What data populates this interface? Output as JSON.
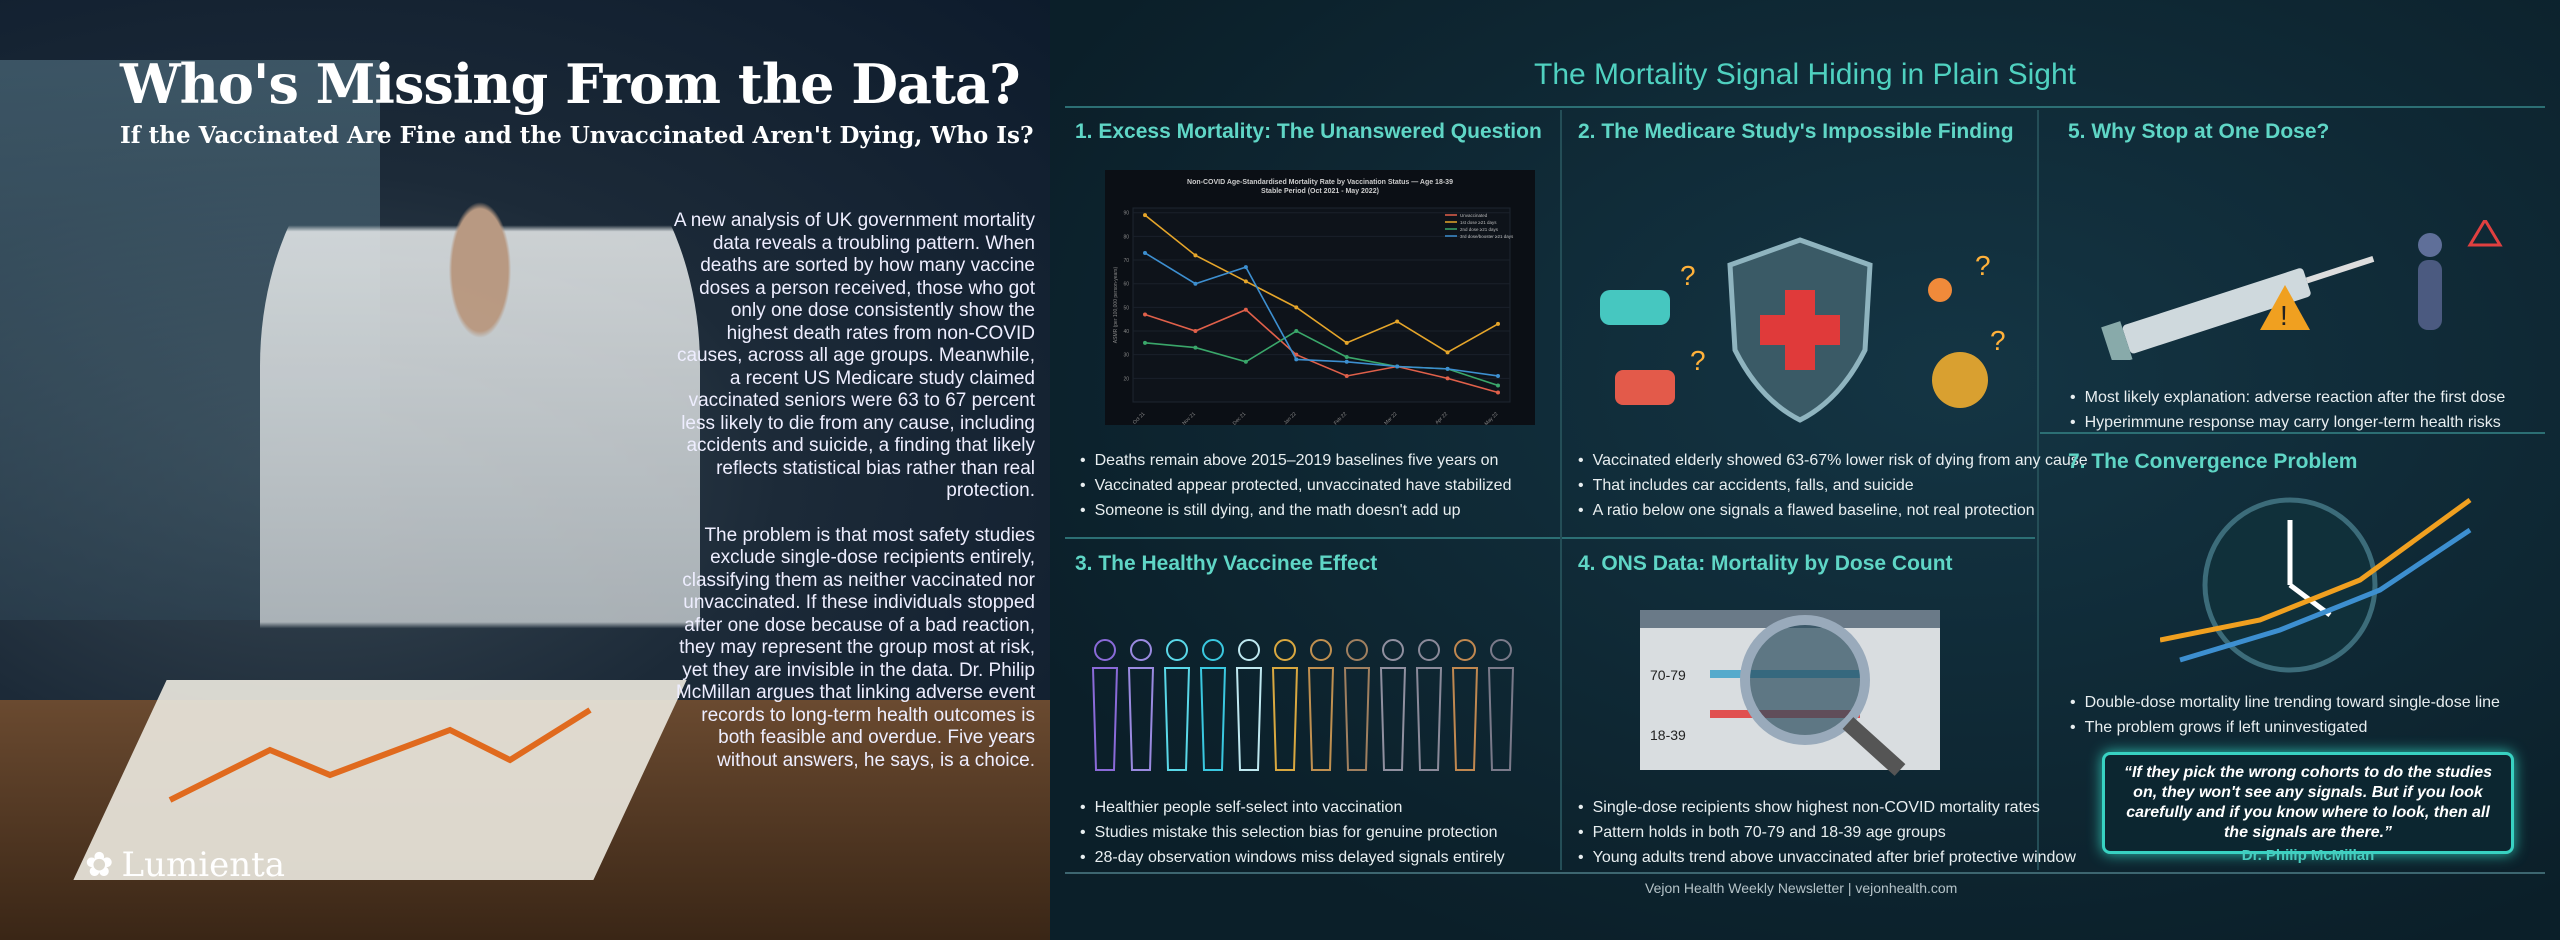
{
  "left": {
    "title": "Who's Missing From the Data?",
    "subtitle": "If the Vaccinated Are Fine and the Unvaccinated Aren't Dying, Who Is?",
    "paragraphs": [
      "A new analysis of UK government mortality data reveals a troubling pattern. When deaths are sorted by how many vaccine doses a person received, those who got only one dose consistently show the highest death rates from non-COVID causes, across all age groups. Meanwhile, a recent US Medicare study claimed vaccinated seniors were 63 to 67 percent less likely to die from any cause, including accidents and suicide, a finding that likely reflects statistical bias rather than real protection.",
      "The problem is that most safety studies exclude single-dose recipients entirely, classifying them as neither vaccinated nor unvaccinated. If these individuals stopped after one dose because of a bad reaction, they may represent the group most at risk, yet they are invisible in the data. Dr. Philip McMillan argues that linking adverse event records to long-term health outcomes is both feasible and overdue. Five years without answers, he says, is a choice."
    ],
    "logo": "Lumienta"
  },
  "main_title": "The Mortality Signal Hiding in Plain Sight",
  "sections": [
    {
      "title": "1. Excess Mortality: The Unanswered Question",
      "bullets": [
        "Deaths remain above 2015–2019 baselines five years on",
        "Vaccinated appear protected, unvaccinated have stabilized",
        "Someone is still dying, and the math doesn't add up"
      ]
    },
    {
      "title": "2. The Medicare Study's Impossible Finding",
      "bullets": [
        "Vaccinated elderly showed 63-67% lower risk of dying from any cause",
        "That includes car accidents, falls, and suicide",
        "A ratio below one signals a flawed baseline, not real protection"
      ]
    },
    {
      "title": "3. The Healthy Vaccinee Effect",
      "bullets": [
        "Healthier people self-select into vaccination",
        "Studies mistake this selection bias for genuine protection",
        "28-day observation windows miss delayed signals entirely"
      ]
    },
    {
      "title": "4. ONS Data: Mortality by Dose Count",
      "bullets": [
        "Single-dose recipients show highest non-COVID mortality rates",
        "Pattern holds in both 70-79 and 18-39 age groups",
        "Young adults trend above unvaccinated after brief protective window"
      ],
      "doc_labels": [
        "70-79",
        "18-39"
      ]
    },
    {
      "title": "5. Why Stop at One Dose?",
      "bullets": [
        "Most likely explanation: adverse reaction after the first dose",
        "Hyperimmune response may carry longer-term health risks"
      ]
    },
    {
      "title": "7. The Convergence Problem",
      "bullets": [
        "Double-dose mortality line trending toward single-dose line",
        "The problem grows if left uninvestigated"
      ]
    }
  ],
  "quote": {
    "text": "“If they pick the wrong cohorts to do the studies on, they won't see any signals. But if you look carefully and if you know where to look, then all the signals are there.”",
    "author": "Dr. Philip McMillan"
  },
  "footer": "Vejon Health Weekly Newsletter | vejonhealth.com",
  "chart_data": {
    "type": "line",
    "title": "Non-COVID Age-Standardised Mortality Rate by Vaccination Status — Age 18-39",
    "subtitle": "Stable Period (Oct 2021 - May 2022)",
    "ylabel": "ASMR (per 100,000 person-years)",
    "x": [
      "Oct 21",
      "Nov 21",
      "Dec 21",
      "Jan 22",
      "Feb 22",
      "Mar 22",
      "Apr 22",
      "May 22"
    ],
    "ylim": [
      10,
      92
    ],
    "yticks": [
      20,
      30,
      40,
      50,
      60,
      70,
      80,
      90
    ],
    "legend": "top-right",
    "series": [
      {
        "name": "Unvaccinated",
        "color": "#e0604a",
        "values": [
          47,
          40,
          49,
          30,
          21,
          25,
          20,
          14
        ]
      },
      {
        "name": "1st dose ≥21 days",
        "color": "#e5a52a",
        "values": [
          89,
          72,
          61,
          50,
          35,
          44,
          31,
          43
        ]
      },
      {
        "name": "2nd dose ≥21 days",
        "color": "#3aa76a",
        "values": [
          35,
          33,
          27,
          40,
          29,
          25,
          24,
          17
        ]
      },
      {
        "name": "3rd dose/booster ≥21 days",
        "color": "#3d8fd0",
        "values": [
          73,
          60,
          67,
          28,
          27,
          25,
          24,
          21
        ]
      }
    ]
  }
}
